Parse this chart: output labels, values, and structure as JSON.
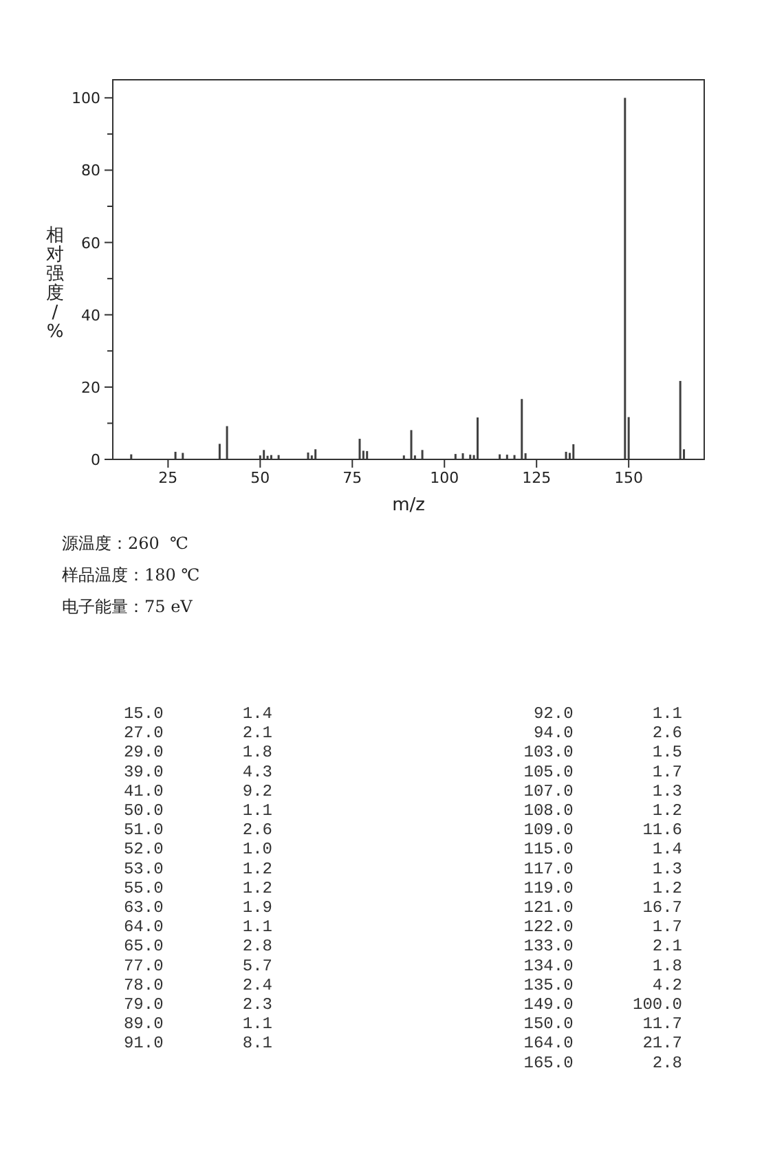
{
  "chart_data": {
    "type": "bar",
    "xlabel": "m/z",
    "ylabel": "相对强度/%",
    "x": [
      15,
      27,
      29,
      39,
      41,
      50,
      51,
      52,
      53,
      55,
      63,
      64,
      65,
      77,
      78,
      79,
      89,
      91,
      92,
      94,
      103,
      105,
      107,
      108,
      109,
      115,
      117,
      119,
      121,
      122,
      133,
      134,
      135,
      149,
      150,
      164,
      165
    ],
    "values": [
      1.4,
      2.1,
      1.8,
      4.3,
      9.2,
      1.1,
      2.6,
      1.0,
      1.2,
      1.2,
      1.9,
      1.1,
      2.8,
      5.7,
      2.4,
      2.3,
      1.1,
      8.1,
      1.1,
      2.6,
      1.5,
      1.7,
      1.3,
      1.2,
      11.6,
      1.4,
      1.3,
      1.2,
      16.7,
      1.7,
      2.1,
      1.8,
      4.2,
      100.0,
      11.7,
      21.7,
      2.8
    ],
    "color": "#404040",
    "xlim": [
      10,
      170.5
    ],
    "xticks": [
      25,
      50,
      75,
      100,
      125,
      150
    ],
    "ylim": [
      0,
      105
    ],
    "yticks": [
      0,
      {
        "value": 10,
        "label": null
      },
      20,
      {
        "value": 30,
        "label": null
      },
      40,
      {
        "value": 50,
        "label": null
      },
      60,
      {
        "value": 70,
        "label": null
      },
      80,
      {
        "value": 90,
        "label": null
      },
      100
    ],
    "annotations": [
      "源温度：260  ℃",
      "样品温度：180 ℃",
      "电子能量：75 eV",
      "15.0        1.4",
      "27.0        2.1",
      "29.0        1.8",
      "39.0        4.3",
      "41.0        9.2",
      "50.0        1.1",
      "51.0        2.6",
      "52.0        1.0",
      "53.0        1.2",
      "55.0        1.2",
      "63.0        1.9",
      "64.0        1.1",
      "65.0        2.8",
      "77.0        5.7",
      "78.0        2.4",
      "79.0        2.3",
      "89.0        1.1",
      "91.0        8.1",
      "92.0        1.1",
      "94.0        2.6",
      "103.0        1.5",
      "105.0        1.7",
      "107.0        1.3",
      "108.0        1.2",
      "109.0       11.6",
      "115.0        1.4",
      "117.0        1.3",
      "119.0        1.2",
      "121.0       16.7",
      "122.0        1.7",
      "133.0        2.1",
      "134.0        1.8",
      "135.0        4.2",
      "149.0      100.0",
      "150.0       11.7",
      "164.0       21.7",
      "165.0        2.8"
    ]
  }
}
